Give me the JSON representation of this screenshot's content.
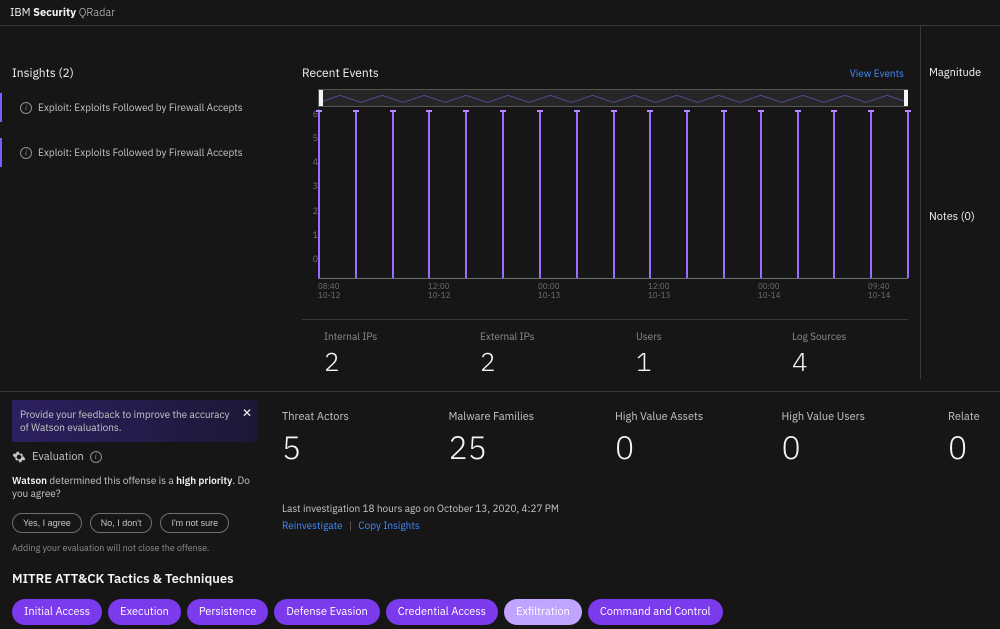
{
  "header": {
    "brand_light": "IBM",
    "brand_bold": "Security",
    "brand_thin": "QRadar"
  },
  "insights": {
    "title": "Insights (2)",
    "items": [
      {
        "label": "Exploit: Exploits Followed by Firewall Accepts"
      },
      {
        "label": "Exploit: Exploits Followed by Firewall Accepts"
      }
    ]
  },
  "events": {
    "title": "Recent Events",
    "view_link": "View Events",
    "chart": {
      "type": "bar",
      "ylim": [
        0,
        6
      ],
      "yticks": [
        0,
        1,
        2,
        3,
        4,
        5,
        6
      ],
      "bar_color": "#9a6dff",
      "cap_color": "#b78aff",
      "axis_color": "#6f6f6f",
      "background": "#161616",
      "bars": [
        5.9,
        5.9,
        5.9,
        5.9,
        5.9,
        5.9,
        5.9,
        5.9,
        5.9,
        5.9,
        5.9,
        5.9,
        5.9,
        5.9,
        5.9,
        5.9,
        5.9
      ],
      "xlabels": [
        {
          "time": "08:40",
          "date": "10-12"
        },
        {
          "time": "12:00",
          "date": "10-12"
        },
        {
          "time": "00:00",
          "date": "10-13"
        },
        {
          "time": "12:00",
          "date": "10-13"
        },
        {
          "time": "00:00",
          "date": "10-14"
        },
        {
          "time": "09:40",
          "date": "10-14"
        }
      ]
    },
    "stats": [
      {
        "label": "Internal IPs",
        "value": "2"
      },
      {
        "label": "External IPs",
        "value": "2"
      },
      {
        "label": "Users",
        "value": "1"
      },
      {
        "label": "Log Sources",
        "value": "4"
      }
    ]
  },
  "side": {
    "magnitude": "Magnitude",
    "notes": "Notes (0)"
  },
  "feedback": {
    "banner": "Provide your feedback to improve the accuracy of Watson evaluations.",
    "evaluation_label": "Evaluation",
    "watson_prefix": "Watson",
    "watson_mid": " determined this offense is a ",
    "watson_priority": "high priority",
    "watson_suffix": ". Do you agree?",
    "buttons": {
      "yes": "Yes, I agree",
      "no": "No, I don't",
      "unsure": "I'm not sure"
    },
    "note": "Adding your evaluation will not close the offense."
  },
  "metrics": [
    {
      "label": "Threat Actors",
      "value": "5"
    },
    {
      "label": "Malware Families",
      "value": "25"
    },
    {
      "label": "High Value Assets",
      "value": "0"
    },
    {
      "label": "High Value Users",
      "value": "0"
    },
    {
      "label": "Relate",
      "value": "0"
    }
  ],
  "investigation": {
    "line": "Last investigation 18 hours ago on October 13, 2020, 4:27 PM",
    "reinvestigate": "Reinvestigate",
    "copy": "Copy Insights"
  },
  "mitre": {
    "title": "MITRE ATT&CK Tactics & Techniques",
    "tactics": [
      {
        "label": "Initial Access",
        "color": "#7c3aed"
      },
      {
        "label": "Execution",
        "color": "#7c3aed"
      },
      {
        "label": "Persistence",
        "color": "#7c3aed"
      },
      {
        "label": "Defense Evasion",
        "color": "#7c3aed"
      },
      {
        "label": "Credential Access",
        "color": "#7c3aed"
      },
      {
        "label": "Exfiltration",
        "color": "#c0a4ff"
      },
      {
        "label": "Command and Control",
        "color": "#7c3aed"
      }
    ]
  }
}
